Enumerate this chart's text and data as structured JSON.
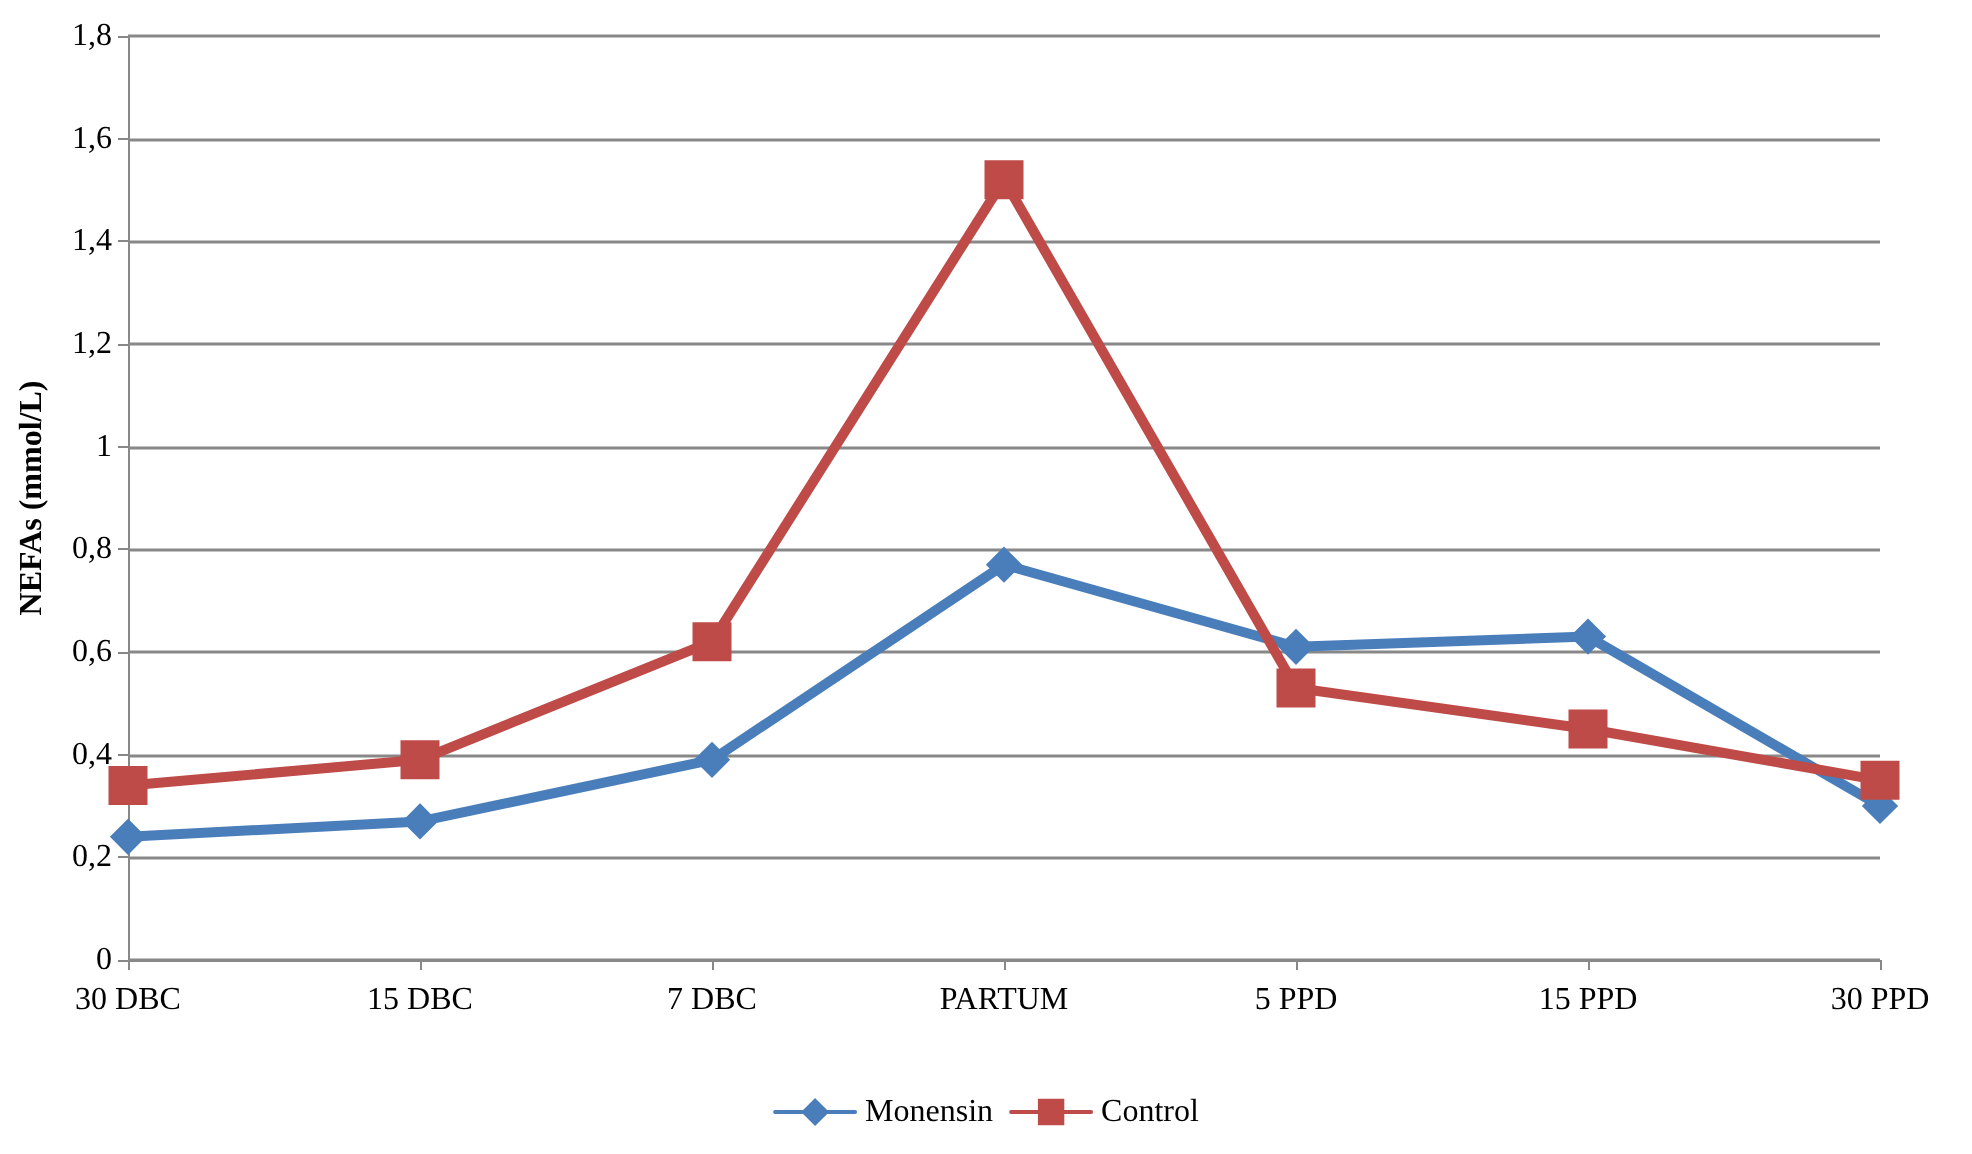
{
  "chart_data": {
    "type": "line",
    "ylabel": "NEFAs (mmol/L)",
    "categories": [
      "30 DBC",
      "15 DBC",
      "7 DBC",
      "PARTUM",
      "5 PPD",
      "15 PPD",
      "30 PPD"
    ],
    "series": [
      {
        "name": "Monensin",
        "color": "#4a7ebb",
        "marker": "diamond",
        "values": [
          0.24,
          0.27,
          0.39,
          0.77,
          0.61,
          0.63,
          0.3
        ]
      },
      {
        "name": "Control",
        "color": "#be4b48",
        "marker": "square",
        "values": [
          0.34,
          0.39,
          0.62,
          1.52,
          0.53,
          0.45,
          0.35
        ]
      }
    ],
    "ylim": [
      0,
      1.8
    ],
    "yticks": [
      0,
      {
        "value": 0.2,
        "label": "0,2"
      },
      {
        "value": 0.4,
        "label": "0,4"
      },
      {
        "value": 0.6,
        "label": "0,6"
      },
      {
        "value": 0.8,
        "label": "0,8"
      },
      1,
      {
        "value": 1.2,
        "label": "1,2"
      },
      {
        "value": 1.4,
        "label": "1,4"
      },
      {
        "value": 1.6,
        "label": "1,6"
      },
      {
        "value": 1.8,
        "label": "1,8"
      }
    ],
    "grid": "y",
    "legend": "bottom",
    "line_style": "solid"
  }
}
